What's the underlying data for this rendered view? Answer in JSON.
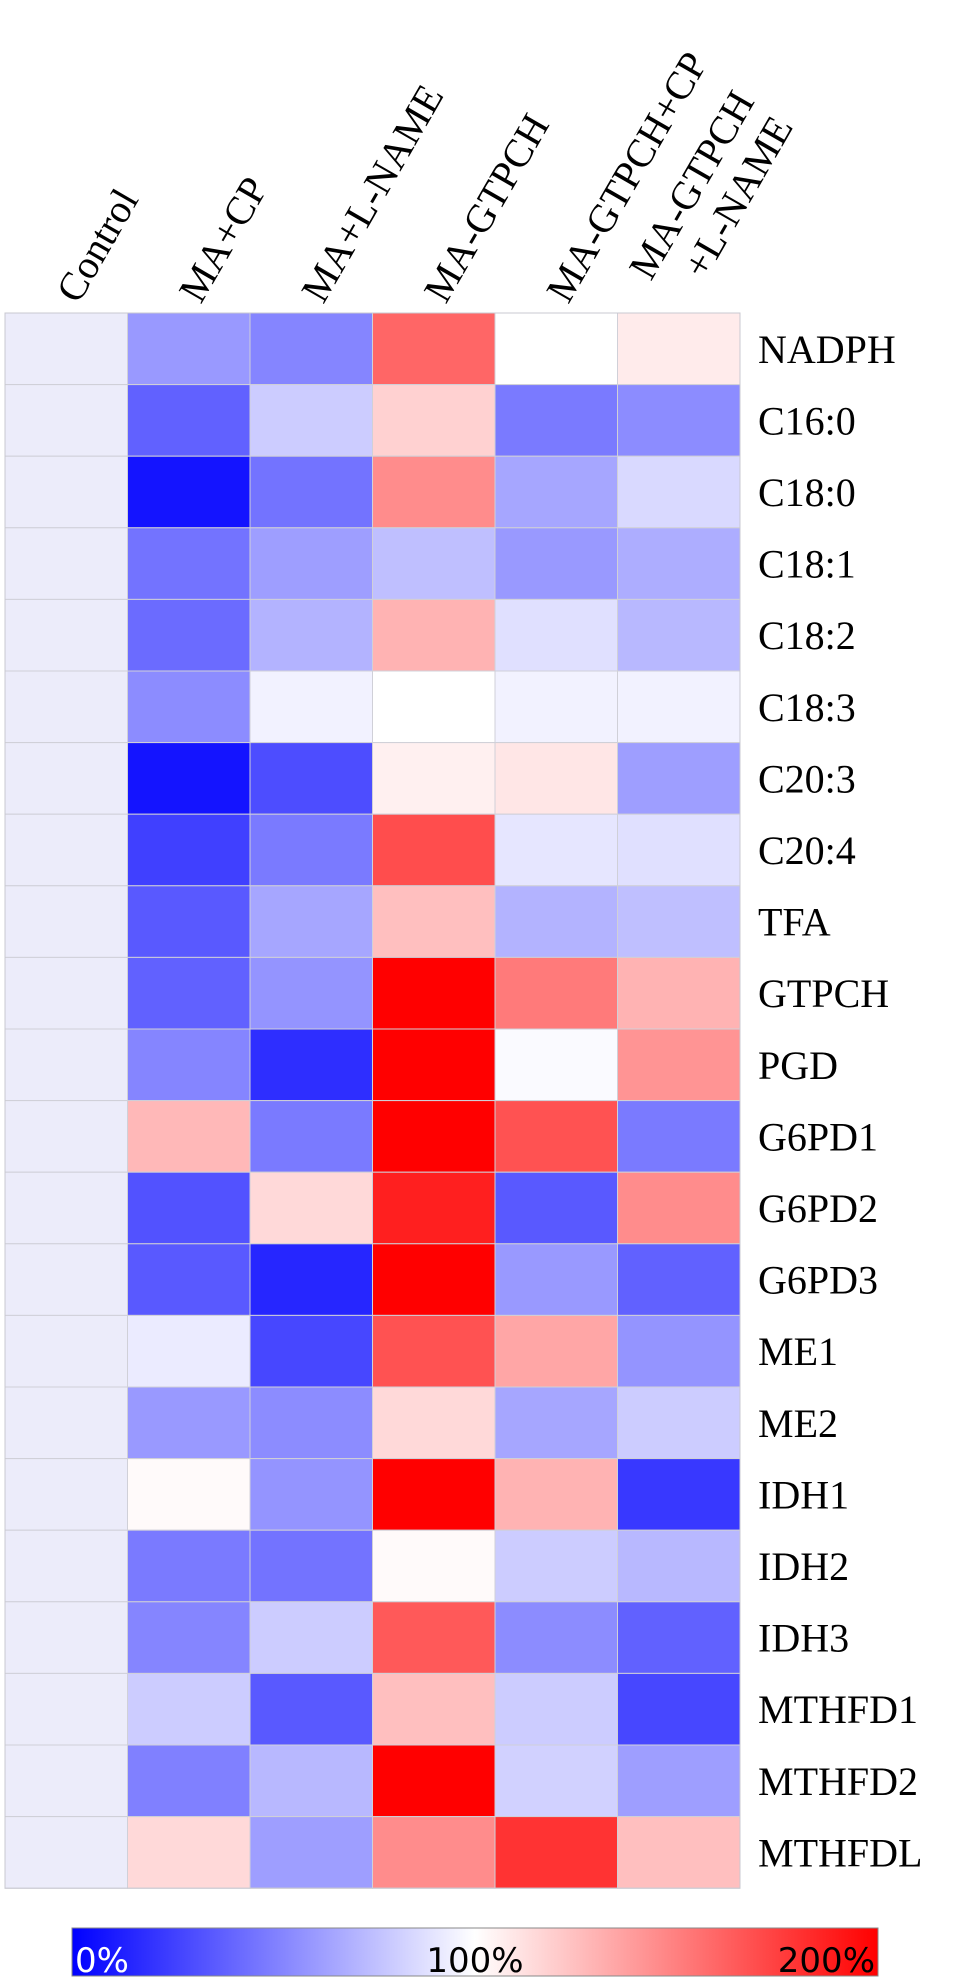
{
  "chart_data": {
    "type": "heatmap",
    "columns": [
      [
        "Control"
      ],
      [
        "MA+CP"
      ],
      [
        "MA+L-NAME"
      ],
      [
        "MA-GTPCH"
      ],
      [
        "MA-GTPCH+CP"
      ],
      [
        "MA-GTPCH",
        "+L-NAME"
      ]
    ],
    "rows": [
      "NADPH",
      "C16:0",
      "C18:0",
      "C18:1",
      "C18:2",
      "C18:3",
      "C20:3",
      "C20:4",
      "TFA",
      "GTPCH",
      "PGD",
      "G6PD1",
      "G6PD2",
      "G6PD3",
      "ME1",
      "ME2",
      "IDH1",
      "IDH2",
      "IDH3",
      "MTHFD1",
      "MTHFD2",
      "MTHFDL"
    ],
    "values_percent": [
      [
        100,
        60,
        52,
        160,
        100,
        108
      ],
      [
        100,
        38,
        80,
        118,
        48,
        55
      ],
      [
        100,
        8,
        45,
        145,
        65,
        85
      ],
      [
        100,
        45,
        62,
        75,
        60,
        68
      ],
      [
        100,
        42,
        70,
        130,
        88,
        72
      ],
      [
        100,
        55,
        95,
        100,
        95,
        95
      ],
      [
        100,
        8,
        30,
        106,
        110,
        62
      ],
      [
        100,
        25,
        48,
        170,
        90,
        88
      ],
      [
        100,
        35,
        65,
        125,
        70,
        75
      ],
      [
        100,
        38,
        58,
        200,
        152,
        130
      ],
      [
        100,
        52,
        18,
        200,
        98,
        142
      ],
      [
        100,
        128,
        48,
        200,
        168,
        48
      ],
      [
        100,
        32,
        115,
        188,
        35,
        145
      ],
      [
        100,
        35,
        15,
        200,
        60,
        38
      ],
      [
        100,
        92,
        28,
        168,
        135,
        58
      ],
      [
        100,
        60,
        55,
        115,
        65,
        80
      ],
      [
        100,
        102,
        58,
        200,
        130,
        22
      ],
      [
        100,
        48,
        45,
        102,
        80,
        72
      ],
      [
        100,
        52,
        80,
        165,
        55,
        38
      ],
      [
        100,
        80,
        35,
        125,
        80,
        28
      ],
      [
        100,
        50,
        72,
        200,
        82,
        62
      ],
      [
        100,
        115,
        62,
        145,
        180,
        125
      ]
    ],
    "color_scale": {
      "min_color": "#0000ff",
      "mid_color": "#ffffff",
      "max_color": "#ff0000",
      "domain": [
        0,
        100,
        200
      ]
    },
    "legend": {
      "labels": [
        "0%",
        "100%",
        "200%"
      ]
    }
  }
}
